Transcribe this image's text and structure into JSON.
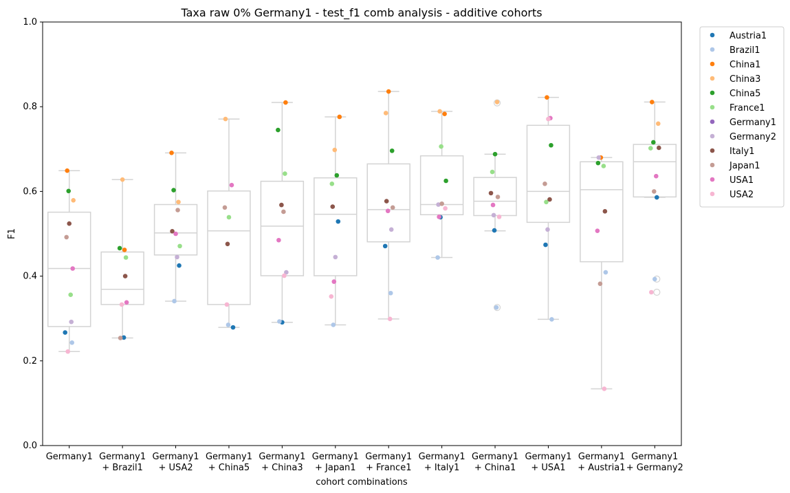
{
  "chart_data": {
    "type": "box",
    "title": "Taxa raw 0% Germany1 - test_f1 comb analysis - additive cohorts",
    "xlabel": "cohort combinations",
    "ylabel": "F1",
    "ylim": [
      0,
      1
    ],
    "yticks": [
      "0.0",
      "0.2",
      "0.4",
      "0.6",
      "0.8",
      "1.0"
    ],
    "grid": false,
    "legend_position": "upper-right outside",
    "categories": [
      [
        "Germany1"
      ],
      [
        "Germany1",
        "+ Brazil1"
      ],
      [
        "Germany1",
        "+ USA2"
      ],
      [
        "Germany1",
        "+ China5"
      ],
      [
        "Germany1",
        "+ China3"
      ],
      [
        "Germany1",
        "+ Japan1"
      ],
      [
        "Germany1",
        "+ France1"
      ],
      [
        "Germany1",
        "+ Italy1"
      ],
      [
        "Germany1",
        "+ China1"
      ],
      [
        "Germany1",
        "+ USA1"
      ],
      [
        "Germany1",
        "+ Austria1"
      ],
      [
        "Germany1",
        "+ Germany2"
      ]
    ],
    "boxes": [
      {
        "q1": 0.281,
        "median": 0.418,
        "q3": 0.551,
        "whisker_low": 0.222,
        "whisker_high": 0.649,
        "outliers": []
      },
      {
        "q1": 0.333,
        "median": 0.369,
        "q3": 0.457,
        "whisker_low": 0.254,
        "whisker_high": 0.628,
        "outliers": []
      },
      {
        "q1": 0.45,
        "median": 0.502,
        "q3": 0.569,
        "whisker_low": 0.341,
        "whisker_high": 0.691,
        "outliers": []
      },
      {
        "q1": 0.333,
        "median": 0.507,
        "q3": 0.601,
        "whisker_low": 0.279,
        "whisker_high": 0.771,
        "outliers": []
      },
      {
        "q1": 0.401,
        "median": 0.518,
        "q3": 0.624,
        "whisker_low": 0.291,
        "whisker_high": 0.81,
        "outliers": []
      },
      {
        "q1": 0.401,
        "median": 0.546,
        "q3": 0.632,
        "whisker_low": 0.285,
        "whisker_high": 0.776,
        "outliers": []
      },
      {
        "q1": 0.481,
        "median": 0.557,
        "q3": 0.665,
        "whisker_low": 0.299,
        "whisker_high": 0.836,
        "outliers": []
      },
      {
        "q1": 0.545,
        "median": 0.569,
        "q3": 0.684,
        "whisker_low": 0.444,
        "whisker_high": 0.789,
        "outliers": []
      },
      {
        "q1": 0.543,
        "median": 0.577,
        "q3": 0.633,
        "whisker_low": 0.507,
        "whisker_high": 0.688,
        "outliers": [
          0.809,
          0.326
        ]
      },
      {
        "q1": 0.527,
        "median": 0.6,
        "q3": 0.756,
        "whisker_low": 0.298,
        "whisker_high": 0.822,
        "outliers": []
      },
      {
        "q1": 0.434,
        "median": 0.604,
        "q3": 0.67,
        "whisker_low": 0.134,
        "whisker_high": 0.68,
        "outliers": []
      },
      {
        "q1": 0.587,
        "median": 0.67,
        "q3": 0.711,
        "whisker_low": 0.586,
        "whisker_high": 0.811,
        "outliers": [
          0.393,
          0.362
        ]
      }
    ],
    "series": [
      {
        "name": "Austria1",
        "color": "#1f77b4",
        "values": [
          0.267,
          0.255,
          0.425,
          0.279,
          0.291,
          0.529,
          0.471,
          0.539,
          0.508,
          0.474,
          null,
          0.586
        ]
      },
      {
        "name": "Brazil1",
        "color": "#aec7e8",
        "values": [
          0.243,
          null,
          0.341,
          0.285,
          0.293,
          0.285,
          0.36,
          0.444,
          0.326,
          0.298,
          0.409,
          0.393
        ]
      },
      {
        "name": "China1",
        "color": "#ff7f0e",
        "values": [
          0.649,
          0.462,
          0.691,
          null,
          0.81,
          0.776,
          0.836,
          0.783,
          null,
          0.822,
          0.68,
          0.811
        ]
      },
      {
        "name": "China3",
        "color": "#ffbb78",
        "values": [
          0.579,
          0.628,
          0.575,
          0.771,
          null,
          0.698,
          0.785,
          0.789,
          0.811,
          null,
          null,
          0.76
        ]
      },
      {
        "name": "China5",
        "color": "#2ca02c",
        "values": [
          0.601,
          0.466,
          0.603,
          null,
          0.745,
          0.638,
          0.696,
          0.625,
          0.688,
          0.709,
          0.667,
          0.716
        ]
      },
      {
        "name": "France1",
        "color": "#98df8a",
        "values": [
          0.356,
          0.444,
          0.471,
          0.539,
          0.642,
          0.618,
          null,
          0.706,
          0.646,
          0.575,
          0.66,
          0.702
        ]
      },
      {
        "name": "Germany1",
        "color": "#9467bd",
        "values": [
          null,
          null,
          null,
          null,
          null,
          null,
          null,
          null,
          null,
          null,
          null,
          null
        ]
      },
      {
        "name": "Germany2",
        "color": "#c5b0d5",
        "values": [
          0.292,
          null,
          0.445,
          null,
          0.409,
          0.445,
          0.51,
          0.569,
          0.544,
          0.51,
          0.68,
          null
        ]
      },
      {
        "name": "Italy1",
        "color": "#8c564b",
        "values": [
          0.524,
          0.4,
          0.506,
          0.476,
          0.568,
          0.564,
          0.577,
          null,
          0.596,
          0.581,
          0.553,
          0.703
        ]
      },
      {
        "name": "Japan1",
        "color": "#c49c94",
        "values": [
          0.492,
          0.254,
          0.556,
          0.562,
          0.552,
          null,
          0.562,
          0.571,
          0.587,
          0.618,
          0.382,
          0.6
        ]
      },
      {
        "name": "USA1",
        "color": "#e377c2",
        "values": [
          0.418,
          0.338,
          0.5,
          0.615,
          0.485,
          0.387,
          0.554,
          0.54,
          0.568,
          0.773,
          0.507,
          0.636
        ]
      },
      {
        "name": "USA2",
        "color": "#f7b6d2",
        "values": [
          0.222,
          0.333,
          null,
          0.333,
          0.401,
          0.352,
          0.299,
          0.56,
          0.54,
          0.771,
          0.134,
          0.362
        ]
      }
    ]
  }
}
